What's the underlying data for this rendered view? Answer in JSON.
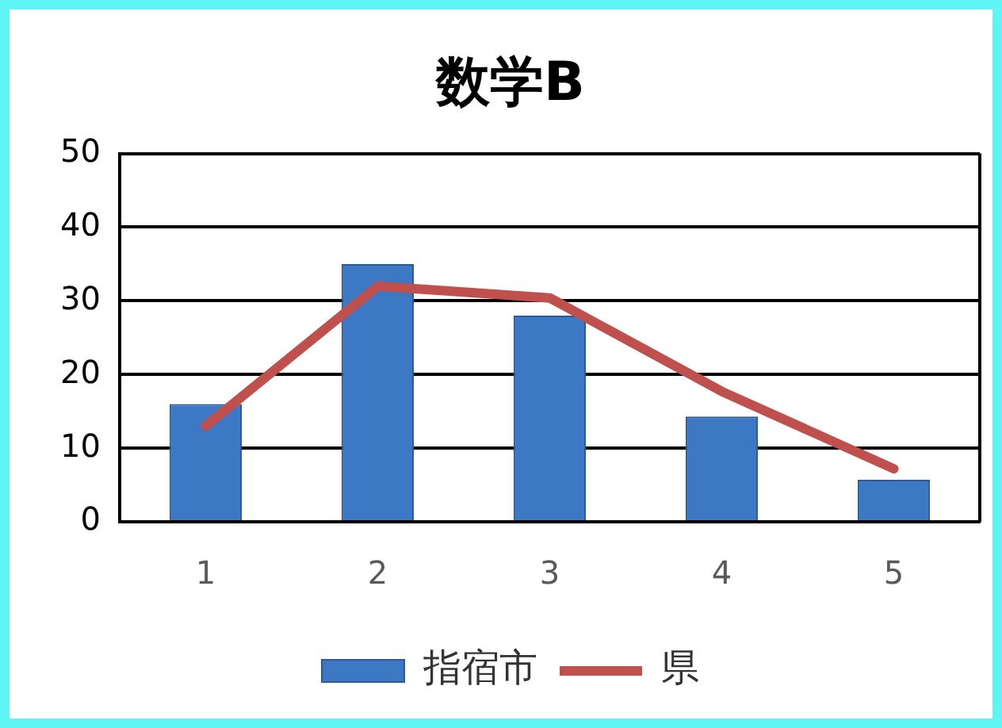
{
  "chart_data": {
    "type": "bar",
    "title": "数学B",
    "categories": [
      "1",
      "2",
      "3",
      "4",
      "5"
    ],
    "series": [
      {
        "name": "指宿市",
        "color": "#3c78c3",
        "values": [
          16,
          35,
          28,
          14.3,
          5.7
        ]
      },
      {
        "name": "県",
        "type": "line",
        "color": "#c0504d",
        "values": [
          13,
          32,
          30.4,
          17.7,
          7.2
        ]
      }
    ],
    "ylim": [
      0,
      50
    ],
    "yticks": [
      0,
      10,
      20,
      30,
      40,
      50
    ],
    "grid": "y",
    "legend": "bottom",
    "marker": "none"
  }
}
